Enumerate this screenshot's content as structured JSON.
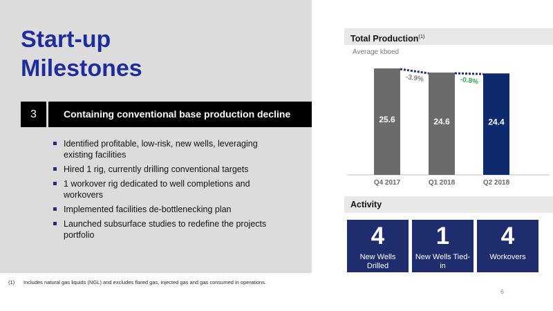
{
  "slide": {
    "title_line1": "Start-up",
    "title_line2": "Milestones",
    "section_number": "3",
    "section_title": "Containing conventional base production decline",
    "bullets": [
      "Identified profitable, low-risk, new wells, leveraging existing facilities",
      "Hired 1 rig, currently drilling conventional targets",
      "1 workover rig dedicated to well completions and workovers",
      "Implemented facilities de-bottlenecking plan",
      "Launched subsurface studies to redefine the projects portfolio"
    ],
    "footnote_marker": "(1)",
    "footnote_text": "Includes natural gas liquids (NGL) and excludes flared gas, injected gas and gas consumed in operations.",
    "page_number": "6"
  },
  "production_panel": {
    "header": "Total Production",
    "header_superscript": "(1)",
    "subtitle": "Average kboed"
  },
  "chart_data": {
    "type": "bar",
    "title": "Total Production",
    "subtitle": "Average kboed",
    "categories": [
      "Q4 2017",
      "Q1 2018",
      "Q2 2018"
    ],
    "values": [
      25.6,
      24.6,
      24.4
    ],
    "value_labels": [
      "25.6",
      "24.6",
      "24.4"
    ],
    "bar_colors": [
      "#6b6b6b",
      "#6b6b6b",
      "#0d2a6e"
    ],
    "changes": [
      {
        "from": "Q4 2017",
        "to": "Q1 2018",
        "label": "-3.9%",
        "color": "#7f7f7f"
      },
      {
        "from": "Q1 2018",
        "to": "Q2 2018",
        "label": "-0.8%",
        "color": "#2eaa4f"
      }
    ],
    "ylim": [
      0,
      25.6
    ],
    "grid": false,
    "legend": "none"
  },
  "activity_panel": {
    "header": "Activity",
    "tiles": [
      {
        "value": "4",
        "label": "New Wells Drilled"
      },
      {
        "value": "1",
        "label": "New Wells Tied-in"
      },
      {
        "value": "4",
        "label": "Workovers"
      }
    ]
  },
  "colors": {
    "title_blue": "#1f2d9c",
    "panel_gray": "#dcdcdc",
    "tile_navy": "#1f2d6e",
    "highlight_bar": "#0d2a6e",
    "bar_gray": "#6b6b6b",
    "connector_dots": "#1f2d6e"
  }
}
